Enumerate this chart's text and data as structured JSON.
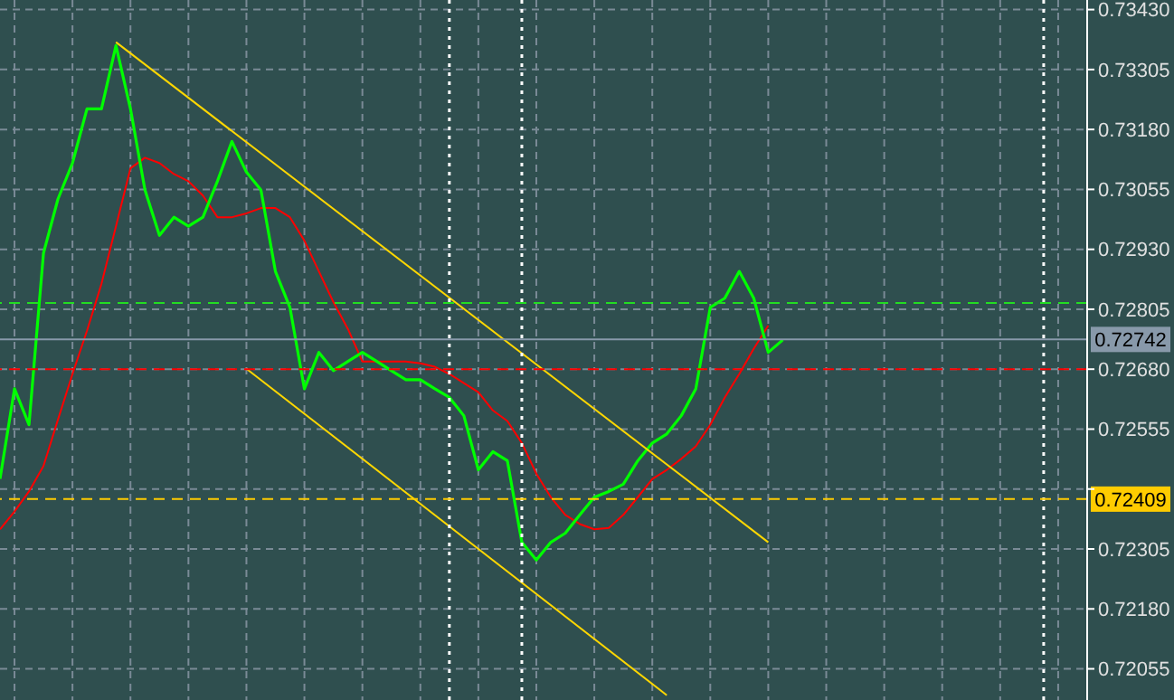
{
  "chart_data": {
    "type": "line",
    "categories": [
      null,
      null,
      null,
      null,
      null,
      null,
      null,
      null,
      null,
      null,
      null,
      null,
      null,
      null,
      null,
      null,
      null,
      null,
      null,
      null,
      null,
      null,
      null,
      null,
      null,
      null,
      null,
      null,
      null,
      null,
      null,
      null,
      null,
      null,
      null,
      null,
      null,
      null,
      null,
      null,
      null,
      null,
      null,
      null,
      null,
      null,
      null,
      null,
      null,
      null,
      null,
      null,
      null,
      null,
      null,
      null,
      null,
      null,
      null,
      null,
      null,
      null,
      null,
      null,
      null,
      null,
      null,
      null,
      null,
      null,
      null,
      null,
      null,
      null,
      null,
      null
    ],
    "series": [
      {
        "color": "#ff0000",
        "values": [
          0.72346,
          0.72383,
          0.72425,
          0.72478,
          0.72575,
          0.7267,
          0.7276,
          0.72858,
          0.72978,
          0.73099,
          0.73121,
          0.7311,
          0.73087,
          0.73072,
          0.73042,
          0.72997,
          0.72997,
          0.73005,
          0.73016,
          0.73016,
          0.72997,
          0.72948,
          0.72884,
          0.7282,
          0.72764,
          0.72696,
          0.72696,
          0.72696,
          0.72696,
          0.72692,
          0.72685,
          0.7267,
          0.72651,
          0.72632,
          0.72594,
          0.72572,
          0.72526,
          0.72462,
          0.72413,
          0.72376,
          0.72357,
          0.72346,
          0.72349,
          0.72376,
          0.72413,
          0.72451,
          0.7247,
          0.72493,
          0.72519,
          0.72564,
          0.72621,
          0.7267,
          0.72723,
          0.72771,
          null,
          null,
          null,
          null,
          null,
          null,
          null,
          null,
          null,
          null,
          null,
          null,
          null,
          null,
          null,
          null,
          null,
          null,
          null,
          null,
          null,
          null
        ]
      },
      {
        "color": "#00ff00",
        "values": [
          0.72451,
          0.72639,
          0.72564,
          0.72922,
          0.73035,
          0.7311,
          0.73223,
          0.73223,
          0.73355,
          0.73223,
          0.73054,
          0.72959,
          0.72997,
          0.72978,
          0.72997,
          0.73072,
          0.73155,
          0.73091,
          0.73054,
          0.72884,
          0.72809,
          0.72639,
          0.72715,
          0.72677,
          0.72696,
          0.72715,
          0.72696,
          0.72677,
          0.72658,
          0.72658,
          0.72639,
          0.72621,
          0.72583,
          0.7247,
          0.72508,
          0.72489,
          0.72319,
          0.72282,
          0.72319,
          0.72338,
          0.72376,
          0.72413,
          0.72425,
          0.7244,
          0.72489,
          0.72526,
          0.72545,
          0.72583,
          0.72639,
          0.72809,
          0.72828,
          0.72884,
          0.72828,
          0.72715,
          0.72741,
          null,
          null,
          null,
          null,
          null,
          null,
          null,
          null,
          null,
          null,
          null,
          null,
          null,
          null,
          null,
          null,
          null,
          null,
          null,
          null,
          null
        ]
      },
      {
        "color": "#ffd700",
        "values": [
          null,
          null,
          null,
          null,
          null,
          null,
          null,
          null,
          0.73362,
          null,
          null,
          null,
          null,
          null,
          null,
          null,
          null,
          null,
          null,
          null,
          null,
          null,
          null,
          null,
          null,
          null,
          null,
          null,
          null,
          null,
          null,
          null,
          null,
          null,
          null,
          null,
          null,
          null,
          null,
          null,
          null,
          null,
          null,
          null,
          null,
          null,
          null,
          null,
          null,
          null,
          null,
          null,
          null,
          0.72319,
          null,
          null,
          null,
          null,
          null,
          null,
          null,
          null,
          null,
          null,
          null,
          null,
          null,
          null,
          null,
          null,
          null,
          null,
          null,
          null,
          null,
          null
        ]
      },
      {
        "color": "#ffd700",
        "values": [
          null,
          null,
          null,
          null,
          null,
          null,
          null,
          null,
          null,
          null,
          null,
          null,
          null,
          null,
          null,
          null,
          null,
          0.72681,
          null,
          null,
          null,
          null,
          null,
          null,
          null,
          null,
          null,
          null,
          null,
          null,
          null,
          null,
          null,
          null,
          null,
          null,
          null,
          null,
          null,
          null,
          null,
          null,
          null,
          null,
          null,
          null,
          0.72,
          null,
          null,
          null,
          null,
          null,
          null,
          null,
          null,
          null,
          null,
          null,
          null,
          null,
          null,
          null,
          null,
          null,
          null,
          null,
          null,
          null,
          null,
          null,
          null,
          null,
          null,
          null,
          null,
          null
        ]
      }
    ],
    "ylim": [
      0.7199,
      0.7345
    ],
    "yticks": [
      {
        "value": 0.7343,
        "label": "0.73430"
      },
      {
        "value": 0.73305,
        "label": "0.73305"
      },
      {
        "value": 0.7318,
        "label": "0.73180"
      },
      {
        "value": 0.73055,
        "label": "0.73055"
      },
      {
        "value": 0.7293,
        "label": "0.72930"
      },
      {
        "value": 0.72805,
        "label": "0.72805"
      },
      {
        "value": 0.7268,
        "label": "0.72680"
      },
      {
        "value": 0.72555,
        "label": "0.72555"
      },
      {
        "value": 0.7243,
        "label": null
      },
      {
        "value": 0.72305,
        "label": "0.72305"
      },
      {
        "value": 0.7218,
        "label": "0.72180"
      },
      {
        "value": 0.72055,
        "label": "0.72055"
      }
    ],
    "ref_lines": [
      {
        "axis": "y",
        "value": 0.72818,
        "color": "#22dd22",
        "line_style": "dashed"
      },
      {
        "axis": "y",
        "value": 0.7268,
        "color": "#ff0000",
        "line_style": "dashed"
      },
      {
        "axis": "y",
        "value": 0.72742,
        "label": "0.72742",
        "color": "#8899aa",
        "line_style": "solid"
      },
      {
        "axis": "y",
        "value": 0.72409,
        "label": "0.72409",
        "color": "#ffcc00",
        "line_style": "dashed"
      }
    ],
    "grid": true,
    "tick_labels": "y",
    "marker": "none",
    "line_style": "solid"
  }
}
